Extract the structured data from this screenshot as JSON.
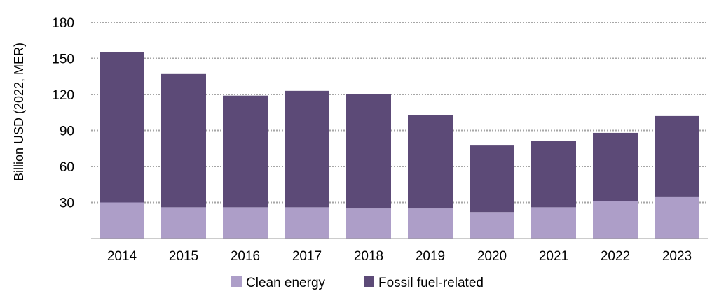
{
  "chart_data": {
    "type": "bar",
    "stacked": true,
    "categories": [
      "2014",
      "2015",
      "2016",
      "2017",
      "2018",
      "2019",
      "2020",
      "2021",
      "2022",
      "2023"
    ],
    "series": [
      {
        "name": "Clean energy",
        "color": "#ad9ec8",
        "values": [
          30,
          26,
          26,
          26,
          25,
          25,
          22,
          26,
          31,
          35
        ]
      },
      {
        "name": "Fossil fuel-related",
        "color": "#5c4a77",
        "values": [
          125,
          111,
          93,
          97,
          95,
          78,
          56,
          55,
          57,
          67
        ]
      }
    ],
    "ylabel": "Billion USD (2022, MER)",
    "yticks": [
      30,
      60,
      90,
      120,
      150,
      180
    ],
    "ylim": [
      0,
      180
    ],
    "grid": true,
    "legend_position": "bottom"
  }
}
